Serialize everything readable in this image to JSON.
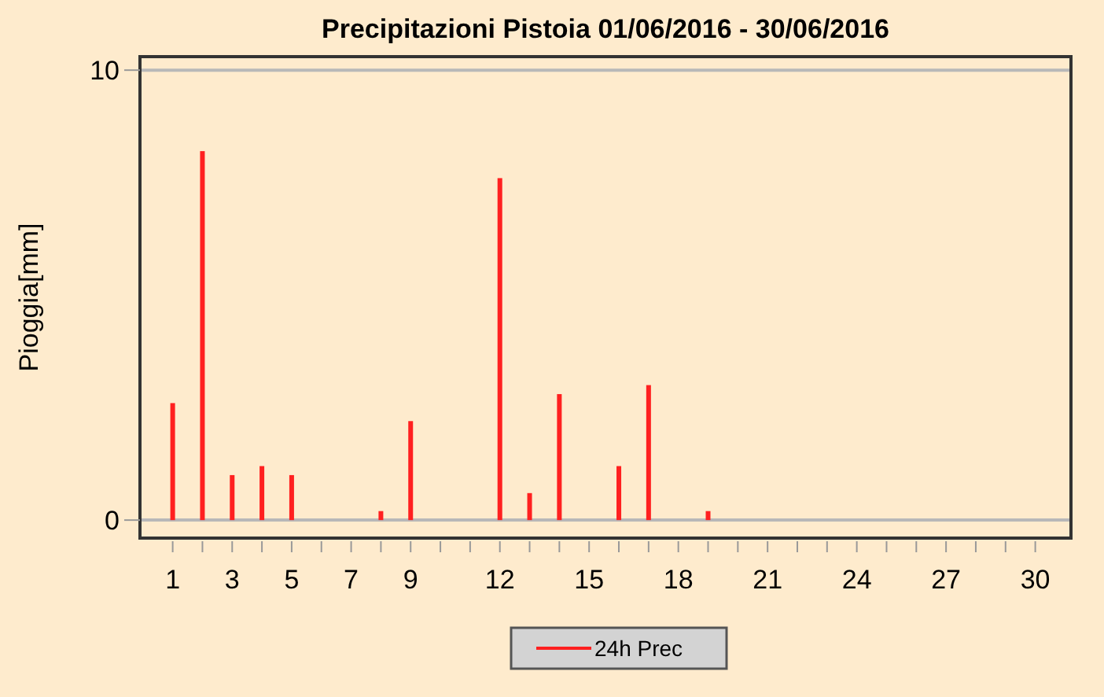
{
  "chart_data": {
    "type": "bar",
    "title": "Precipitazioni Pistoia 01/06/2016 - 30/06/2016",
    "ylabel": "Pioggia[mm]",
    "x": [
      1,
      2,
      3,
      4,
      5,
      6,
      7,
      8,
      9,
      10,
      11,
      12,
      13,
      14,
      15,
      16,
      17,
      18,
      19,
      20,
      21,
      22,
      23,
      24,
      25,
      26,
      27,
      28,
      29,
      30
    ],
    "series": [
      {
        "name": "24h Prec",
        "color": "#ff2020",
        "values": [
          2.6,
          8.2,
          1.0,
          1.2,
          1.0,
          0,
          0,
          0.2,
          2.2,
          0,
          0,
          7.6,
          0.6,
          2.8,
          0,
          1.2,
          3.0,
          0,
          0.2,
          0,
          0,
          0,
          0,
          0,
          0,
          0,
          0,
          0,
          0,
          0
        ]
      }
    ],
    "xlim": [
      -0.1,
      31.2
    ],
    "xticks": [
      1,
      {
        "value": 2,
        "label": null
      },
      3,
      {
        "value": 4,
        "label": null
      },
      5,
      {
        "value": 6,
        "label": null
      },
      7,
      {
        "value": 8,
        "label": null
      },
      9,
      {
        "value": 10,
        "label": null
      },
      {
        "value": 11,
        "label": null
      },
      12,
      {
        "value": 13,
        "label": null
      },
      {
        "value": 14,
        "label": null
      },
      15,
      {
        "value": 16,
        "label": null
      },
      {
        "value": 17,
        "label": null
      },
      18,
      {
        "value": 19,
        "label": null
      },
      {
        "value": 20,
        "label": null
      },
      21,
      {
        "value": 22,
        "label": null
      },
      {
        "value": 23,
        "label": null
      },
      24,
      {
        "value": 25,
        "label": null
      },
      {
        "value": 26,
        "label": null
      },
      27,
      {
        "value": 28,
        "label": null
      },
      {
        "value": 29,
        "label": null
      },
      30
    ],
    "ylim": [
      -0.4,
      10.3
    ],
    "yticks": [
      0,
      10
    ],
    "grid": "y",
    "legend": "bottom"
  }
}
